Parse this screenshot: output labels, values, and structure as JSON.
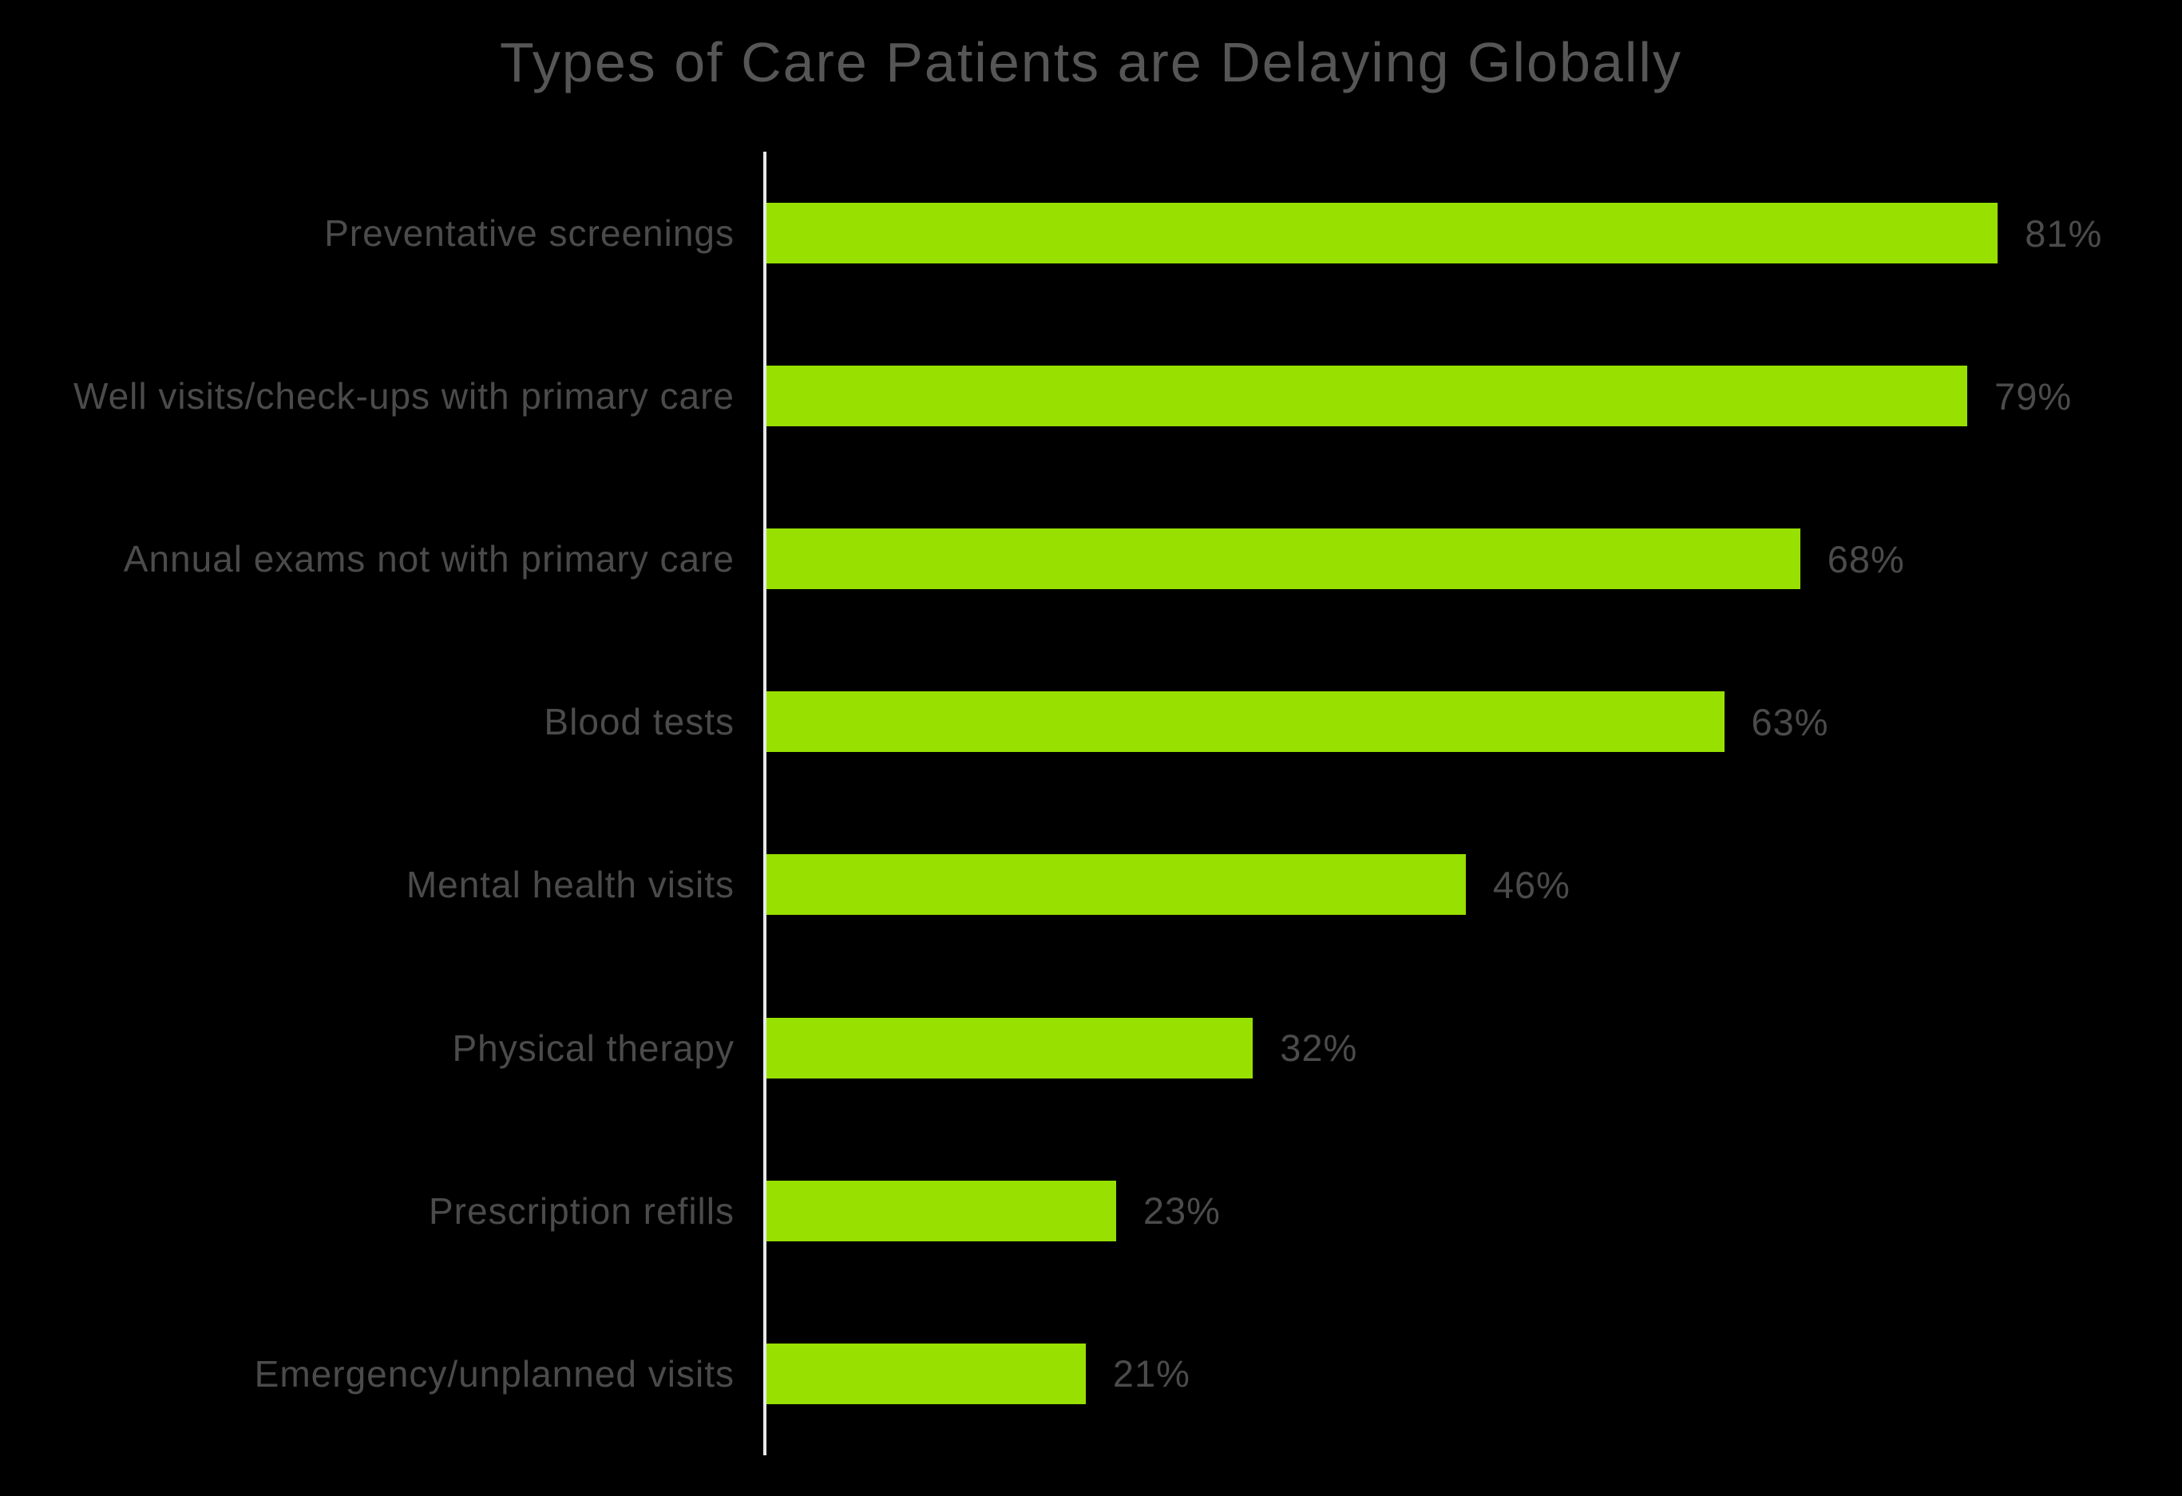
{
  "chart_data": {
    "type": "bar",
    "orientation": "horizontal",
    "title": "Types of Care Patients are Delaying Globally",
    "categories": [
      "Preventative screenings",
      "Well visits/check-ups with primary care",
      "Annual exams not with primary care",
      "Blood tests",
      "Mental health visits",
      "Physical therapy",
      "Prescription refills",
      "Emergency/unplanned visits"
    ],
    "values": [
      81,
      79,
      68,
      63,
      46,
      32,
      23,
      21
    ],
    "value_labels": [
      "81%",
      "79%",
      "68%",
      "63%",
      "46%",
      "32%",
      "23%",
      "21%"
    ],
    "xlabel": "",
    "ylabel": "",
    "xlim": [
      0,
      100
    ],
    "grid": false,
    "legend": "none",
    "value_label_position": "end-of-bar",
    "colors": {
      "background": "#000000",
      "bar": "#97E000",
      "title_text": "#565656",
      "label_text": "#4B4B4B",
      "axis_line": "#E8E8E8"
    }
  }
}
